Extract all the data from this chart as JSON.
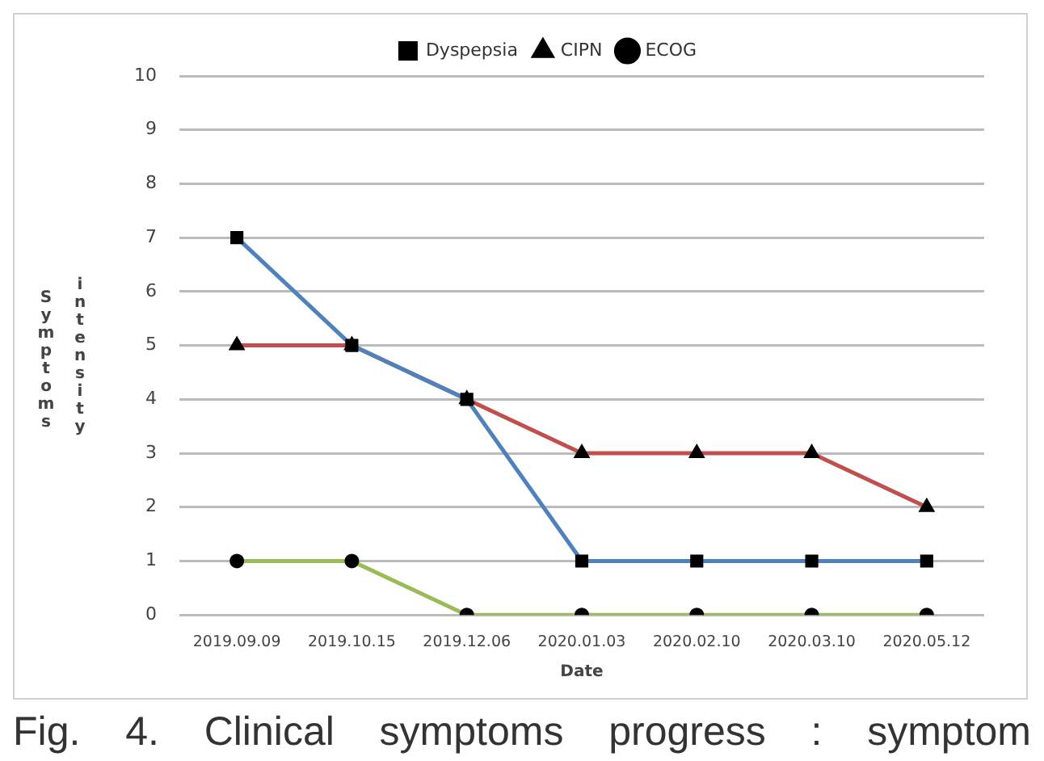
{
  "chart_data": {
    "type": "line",
    "xlabel": "Date",
    "ylabel": "Symptoms intensity",
    "categories": [
      "2019.09.09",
      "2019.10.15",
      "2019.12.06",
      "2020.01.03",
      "2020.02.10",
      "2020.03.10",
      "2020.05.12"
    ],
    "series": [
      {
        "name": "Dyspepsia",
        "color": "#4f81bd",
        "marker": "square",
        "values": [
          7,
          5,
          4,
          1,
          1,
          1,
          1
        ]
      },
      {
        "name": "CIPN",
        "color": "#c0504d",
        "marker": "triangle",
        "values": [
          5,
          5,
          4,
          3,
          3,
          3,
          2
        ]
      },
      {
        "name": "ECOG",
        "color": "#9bbb59",
        "marker": "circle",
        "values": [
          1,
          1,
          0,
          0,
          0,
          0,
          0
        ]
      }
    ],
    "ylim": [
      0,
      10
    ],
    "yticks": [
      0,
      1,
      2,
      3,
      4,
      5,
      6,
      7,
      8,
      9,
      10
    ],
    "grid": "y",
    "legend": "top",
    "annotations": [
      "Fig. 4. Clinical symptoms progress : symptom"
    ]
  }
}
